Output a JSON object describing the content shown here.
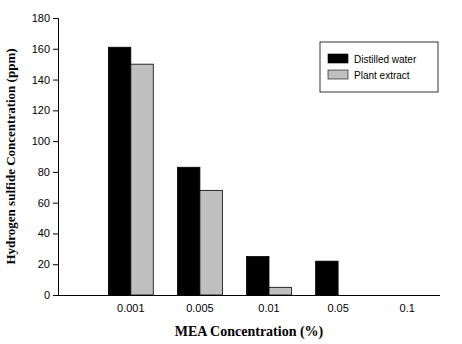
{
  "chart_data": {
    "type": "bar",
    "x_label": "MEA Concentration (%)",
    "y_label": "Hydrogen sulfide Concentration (ppm)",
    "categories": [
      "0.001",
      "0.005",
      "0.01",
      "0.05",
      "0.1"
    ],
    "series": [
      {
        "name": "Distilled water",
        "color": "#000000",
        "values": [
          161,
          83,
          25,
          22,
          0
        ]
      },
      {
        "name": "Plant extract",
        "color": "#c0c0c0",
        "values": [
          150,
          68,
          5,
          0,
          0
        ]
      }
    ],
    "ylim": [
      0,
      180
    ],
    "yticks": [
      0,
      20,
      40,
      60,
      80,
      100,
      120,
      140,
      160,
      180
    ],
    "grid": false,
    "legend": "top-right"
  }
}
